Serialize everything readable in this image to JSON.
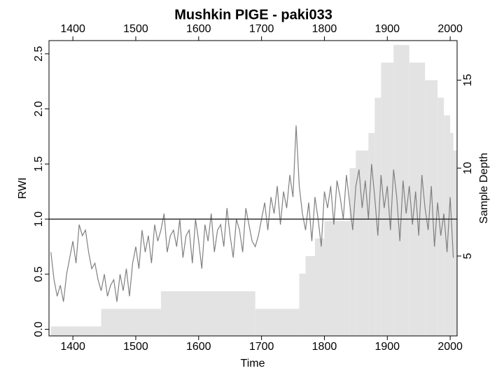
{
  "chart_data": {
    "type": "line",
    "title": "Mushkin PIGE - paki033",
    "xlabel": "Time",
    "ylabel": "RWI",
    "y2label": "Sample Depth",
    "x": [
      1365,
      1370,
      1375,
      1380,
      1385,
      1390,
      1395,
      1400,
      1405,
      1410,
      1415,
      1420,
      1425,
      1430,
      1435,
      1440,
      1445,
      1450,
      1455,
      1460,
      1465,
      1470,
      1475,
      1480,
      1485,
      1490,
      1495,
      1500,
      1505,
      1510,
      1515,
      1520,
      1525,
      1530,
      1535,
      1540,
      1545,
      1550,
      1555,
      1560,
      1565,
      1570,
      1575,
      1580,
      1585,
      1590,
      1595,
      1600,
      1605,
      1610,
      1615,
      1620,
      1625,
      1630,
      1635,
      1640,
      1645,
      1650,
      1655,
      1660,
      1665,
      1670,
      1675,
      1680,
      1685,
      1690,
      1695,
      1700,
      1705,
      1710,
      1715,
      1720,
      1725,
      1730,
      1735,
      1740,
      1745,
      1750,
      1755,
      1760,
      1765,
      1770,
      1775,
      1780,
      1785,
      1790,
      1795,
      1800,
      1805,
      1810,
      1815,
      1820,
      1825,
      1830,
      1835,
      1840,
      1845,
      1850,
      1855,
      1860,
      1865,
      1870,
      1875,
      1880,
      1885,
      1890,
      1895,
      1900,
      1905,
      1910,
      1915,
      1920,
      1925,
      1930,
      1935,
      1940,
      1945,
      1950,
      1955,
      1960,
      1965,
      1970,
      1975,
      1980,
      1985,
      1990,
      1995,
      2000,
      2005
    ],
    "series": [
      {
        "color": "#808080",
        "values": [
          0.7,
          0.45,
          0.3,
          0.4,
          0.25,
          0.5,
          0.65,
          0.8,
          0.6,
          0.95,
          0.85,
          0.9,
          0.7,
          0.55,
          0.6,
          0.45,
          0.35,
          0.5,
          0.3,
          0.4,
          0.45,
          0.25,
          0.5,
          0.35,
          0.55,
          0.3,
          0.6,
          0.75,
          0.55,
          0.9,
          0.7,
          0.85,
          0.6,
          0.95,
          0.8,
          0.9,
          1.05,
          0.7,
          0.85,
          0.9,
          0.75,
          1.0,
          0.65,
          0.85,
          0.9,
          0.6,
          1.0,
          0.8,
          0.55,
          0.95,
          0.8,
          1.05,
          0.7,
          0.9,
          0.95,
          0.75,
          1.1,
          0.85,
          0.65,
          1.0,
          0.9,
          0.7,
          1.1,
          0.95,
          0.8,
          0.75,
          0.85,
          1.0,
          1.15,
          0.9,
          1.2,
          1.05,
          1.3,
          0.95,
          1.25,
          1.1,
          1.4,
          1.2,
          1.85,
          1.3,
          1.05,
          0.9,
          1.15,
          0.8,
          1.2,
          1.0,
          0.75,
          1.25,
          1.1,
          1.3,
          0.95,
          1.35,
          1.2,
          1.0,
          1.4,
          1.15,
          0.9,
          1.3,
          1.45,
          1.1,
          1.35,
          1.0,
          1.5,
          1.2,
          0.85,
          1.4,
          1.1,
          1.3,
          0.9,
          1.45,
          1.2,
          0.8,
          1.35,
          1.05,
          1.3,
          0.95,
          1.25,
          0.85,
          1.4,
          1.1,
          0.9,
          1.3,
          0.75,
          1.15,
          0.85,
          1.05,
          0.7,
          1.2,
          0.65
        ]
      },
      {
        "type": "step-area",
        "axis": "y2",
        "color": "#e3e3e3",
        "edge": "#cfcfcf",
        "x": [
          1365,
          1445,
          1540,
          1690,
          1760,
          1770,
          1785,
          1800,
          1840,
          1850,
          1870,
          1880,
          1890,
          1910,
          1935,
          1960,
          1980,
          1990,
          2000,
          2005
        ],
        "values": [
          1,
          2,
          3,
          2,
          4,
          5,
          6,
          7,
          10,
          11,
          12,
          14,
          16,
          17,
          16,
          15,
          14,
          13,
          12,
          11
        ]
      }
    ],
    "hline": 1,
    "xlim": [
      1362,
      2011
    ],
    "xticks": [
      1400,
      1500,
      1600,
      1700,
      1800,
      1900,
      2000
    ],
    "ylim": [
      -0.06,
      2.62
    ],
    "yticks": [
      {
        "value": 0,
        "label": "0.0"
      },
      0.5,
      {
        "value": 1,
        "label": "1.0"
      },
      1.5,
      {
        "value": 2,
        "label": "2.0"
      },
      2.5
    ],
    "y2lim": [
      0.46,
      17.25
    ],
    "y2ticks": [
      5,
      10,
      15
    ]
  }
}
